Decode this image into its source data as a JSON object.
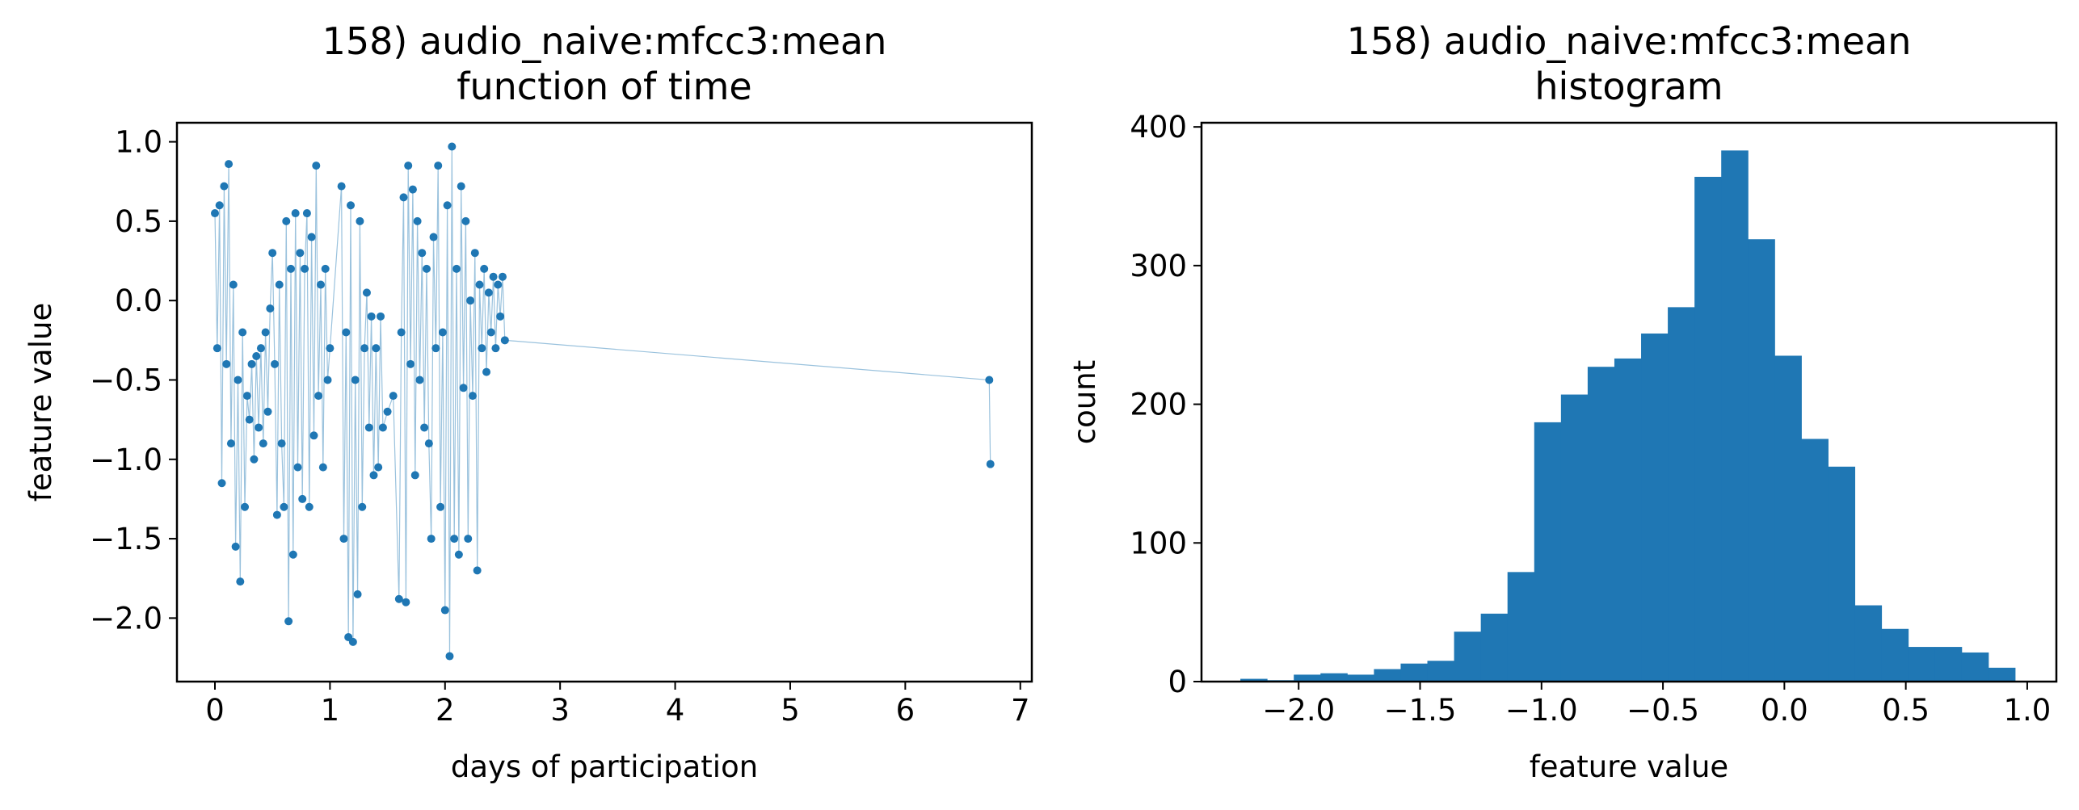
{
  "chart_data": [
    {
      "type": "scatter",
      "title": "158) audio_naive:mfcc3:mean",
      "subtitle": "function of time",
      "xlabel": "days of participation",
      "ylabel": "feature value",
      "xlim": [
        -0.33,
        7.1
      ],
      "ylim": [
        -2.4,
        1.12
      ],
      "xticks": [
        0,
        1,
        2,
        3,
        4,
        5,
        6,
        7
      ],
      "xtick_labels": [
        "0",
        "1",
        "2",
        "3",
        "4",
        "5",
        "6",
        "7"
      ],
      "yticks": [
        1.0,
        0.5,
        0.0,
        -0.5,
        -1.0,
        -1.5,
        -2.0
      ],
      "ytick_labels": [
        "1.0",
        "0.5",
        "0.0",
        "−0.5",
        "−1.0",
        "−1.5",
        "−2.0"
      ],
      "color": "#1f77b4",
      "connected": true,
      "series": [
        {
          "x": [
            0.0,
            0.02,
            0.04,
            0.06,
            0.08,
            0.1,
            0.12,
            0.14,
            0.16,
            0.18,
            0.2,
            0.22,
            0.24,
            0.26,
            0.28,
            0.3,
            0.32,
            0.34,
            0.36,
            0.38,
            0.4,
            0.42,
            0.44,
            0.46,
            0.48,
            0.5,
            0.52,
            0.54,
            0.56,
            0.58,
            0.6,
            0.62,
            0.64,
            0.66,
            0.68,
            0.7,
            0.72,
            0.74,
            0.76,
            0.78,
            0.8,
            0.82,
            0.84,
            0.86,
            0.88,
            0.9,
            0.92,
            0.94,
            0.96,
            0.98,
            1.0,
            1.1,
            1.12,
            1.14,
            1.16,
            1.18,
            1.2,
            1.22,
            1.24,
            1.26,
            1.28,
            1.3,
            1.32,
            1.34,
            1.36,
            1.38,
            1.4,
            1.42,
            1.44,
            1.46,
            1.5,
            1.55,
            1.6,
            1.62,
            1.64,
            1.66,
            1.68,
            1.7,
            1.72,
            1.74,
            1.76,
            1.78,
            1.8,
            1.82,
            1.84,
            1.86,
            1.88,
            1.9,
            1.92,
            1.94,
            1.96,
            1.98,
            2.0,
            2.02,
            2.04,
            2.06,
            2.08,
            2.1,
            2.12,
            2.14,
            2.16,
            2.18,
            2.2,
            2.22,
            2.24,
            2.26,
            2.28,
            2.3,
            2.32,
            2.34,
            2.36,
            2.38,
            2.4,
            2.42,
            2.44,
            2.46,
            2.48,
            2.5,
            2.52,
            6.73,
            6.74
          ],
          "y": [
            0.55,
            -0.3,
            0.6,
            -1.15,
            0.72,
            -0.4,
            0.86,
            -0.9,
            0.1,
            -1.55,
            -0.5,
            -1.77,
            -0.2,
            -1.3,
            -0.6,
            -0.75,
            -0.4,
            -1.0,
            -0.35,
            -0.8,
            -0.3,
            -0.9,
            -0.2,
            -0.7,
            -0.05,
            0.3,
            -0.4,
            -1.35,
            0.1,
            -0.9,
            -1.3,
            0.5,
            -2.02,
            0.2,
            -1.6,
            0.55,
            -1.05,
            0.3,
            -1.25,
            0.2,
            0.55,
            -1.3,
            0.4,
            -0.85,
            0.85,
            -0.6,
            0.1,
            -1.05,
            0.2,
            -0.5,
            -0.3,
            0.72,
            -1.5,
            -0.2,
            -2.12,
            0.6,
            -2.15,
            -0.5,
            -1.85,
            0.5,
            -1.3,
            -0.3,
            0.05,
            -0.8,
            -0.1,
            -1.1,
            -0.3,
            -1.05,
            -0.1,
            -0.8,
            -0.7,
            -0.6,
            -1.88,
            -0.2,
            0.65,
            -1.9,
            0.85,
            -0.4,
            0.7,
            -1.1,
            0.5,
            -0.5,
            0.3,
            -0.8,
            0.2,
            -0.9,
            -1.5,
            0.4,
            -0.3,
            0.85,
            -1.3,
            -0.2,
            -1.95,
            0.6,
            -2.24,
            0.97,
            -1.5,
            0.2,
            -1.6,
            0.72,
            -0.55,
            0.5,
            -1.5,
            0.0,
            -0.6,
            0.3,
            -1.7,
            0.1,
            -0.3,
            0.2,
            -0.45,
            0.05,
            -0.2,
            0.15,
            -0.3,
            0.1,
            -0.1,
            0.15,
            -0.25,
            -0.5,
            -1.03
          ]
        }
      ]
    },
    {
      "type": "bar",
      "title": "158) audio_naive:mfcc3:mean",
      "subtitle": "histogram",
      "xlabel": "feature value",
      "ylabel": "count",
      "xlim": [
        -2.4,
        1.12
      ],
      "ylim": [
        0,
        403
      ],
      "xticks": [
        -2.0,
        -1.5,
        -1.0,
        -0.5,
        0.0,
        0.5,
        1.0
      ],
      "xtick_labels": [
        "−2.0",
        "−1.5",
        "−1.0",
        "−0.5",
        "0.0",
        "0.5",
        "1.0"
      ],
      "yticks": [
        0,
        100,
        200,
        300,
        400
      ],
      "ytick_labels": [
        "0",
        "100",
        "200",
        "300",
        "400"
      ],
      "color": "#1f77b4",
      "bin_edges": [
        -2.24,
        -2.13,
        -2.02,
        -1.91,
        -1.8,
        -1.69,
        -1.58,
        -1.47,
        -1.36,
        -1.25,
        -1.14,
        -1.03,
        -0.92,
        -0.81,
        -0.7,
        -0.59,
        -0.48,
        -0.37,
        -0.26,
        -0.15,
        -0.04,
        0.07,
        0.18,
        0.29,
        0.4,
        0.51,
        0.62,
        0.73,
        0.84,
        0.95
      ],
      "values": [
        2,
        1,
        5,
        6,
        5,
        9,
        13,
        15,
        36,
        49,
        79,
        187,
        207,
        227,
        233,
        251,
        270,
        364,
        383,
        319,
        235,
        175,
        155,
        55,
        38,
        25,
        25,
        21,
        10
      ]
    }
  ]
}
